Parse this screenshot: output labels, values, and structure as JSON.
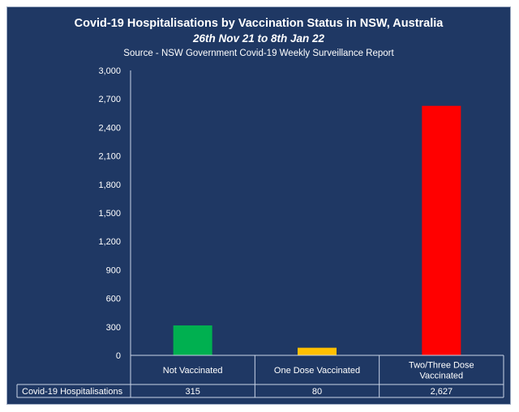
{
  "chart_data": {
    "type": "bar",
    "title": "Covid-19 Hospitalisations by Vaccination Status in NSW, Australia",
    "subtitle": "26th Nov 21 to 8th Jan 22",
    "source": "Source - NSW Government Covid-19 Weekly Surveillance Report",
    "categories": [
      [
        "Not Vaccinated"
      ],
      [
        "One Dose Vaccinated"
      ],
      [
        "Two/Three Dose",
        "Vaccinated"
      ]
    ],
    "series": [
      {
        "name": "Covid-19 Hospitalisations",
        "values": [
          315,
          80,
          2627
        ],
        "value_labels": [
          "315",
          "80",
          "2,627"
        ],
        "colors": [
          "#00b050",
          "#ffc000",
          "#ff0000"
        ]
      }
    ],
    "ylim": [
      0,
      3000
    ],
    "yticks": [
      0,
      300,
      600,
      900,
      1200,
      1500,
      1800,
      2100,
      2400,
      2700,
      3000
    ],
    "ytick_labels": [
      "0",
      "300",
      "600",
      "900",
      "1,200",
      "1,500",
      "1,800",
      "2,100",
      "2,400",
      "2,700",
      "3,000"
    ],
    "gridlines": false,
    "data_table": true,
    "background": "#1f3864",
    "text_color": "#ffffff"
  }
}
